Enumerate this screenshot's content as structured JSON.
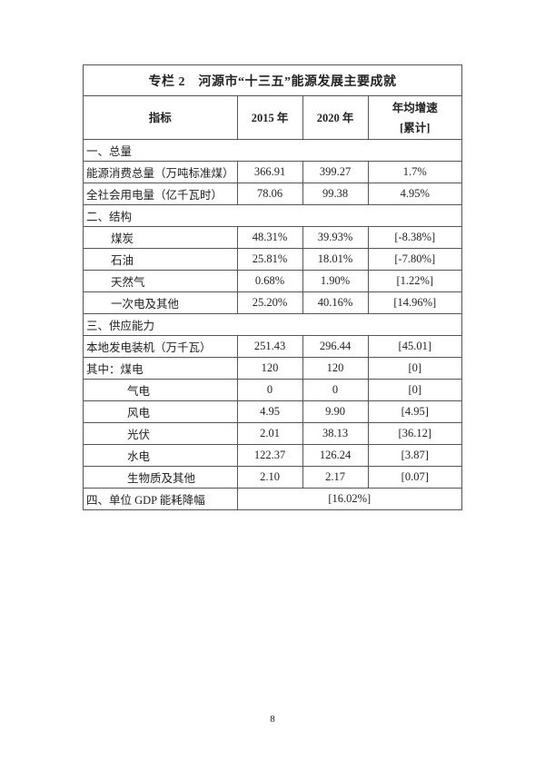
{
  "table": {
    "title": "专栏 2　河源市“十三五”能源发展主要成就",
    "headers": [
      "指标",
      "2015 年",
      "2020 年",
      "年均增速",
      "[累计]"
    ],
    "rows": [
      {
        "type": "section",
        "label": "一、总量"
      },
      {
        "type": "row",
        "indent": 0,
        "label": "能源消费总量（万吨标准煤）",
        "v2015": "366.91",
        "v2020": "399.27",
        "growth": "1.7%"
      },
      {
        "type": "row",
        "indent": 0,
        "label": "全社会用电量（亿千瓦时）",
        "v2015": "78.06",
        "v2020": "99.38",
        "growth": "4.95%"
      },
      {
        "type": "section",
        "label": "二、结构"
      },
      {
        "type": "row",
        "indent": 1,
        "label": "煤炭",
        "v2015": "48.31%",
        "v2020": "39.93%",
        "growth": "[-8.38%]"
      },
      {
        "type": "row",
        "indent": 1,
        "label": "石油",
        "v2015": "25.81%",
        "v2020": "18.01%",
        "growth": "[-7.80%]"
      },
      {
        "type": "row",
        "indent": 1,
        "label": "天然气",
        "v2015": "0.68%",
        "v2020": "1.90%",
        "growth": "[1.22%]"
      },
      {
        "type": "row",
        "indent": 1,
        "label": "一次电及其他",
        "v2015": "25.20%",
        "v2020": "40.16%",
        "growth": "[14.96%]"
      },
      {
        "type": "section",
        "label": "三、供应能力"
      },
      {
        "type": "row",
        "indent": 0,
        "label": "本地发电装机（万千瓦）",
        "v2015": "251.43",
        "v2020": "296.44",
        "growth": "[45.01]"
      },
      {
        "type": "row",
        "indent": 0,
        "label": "其中：煤电",
        "v2015": "120",
        "v2020": "120",
        "growth": "[0]"
      },
      {
        "type": "row",
        "indent": 2,
        "label": "气电",
        "v2015": "0",
        "v2020": "0",
        "growth": "[0]"
      },
      {
        "type": "row",
        "indent": 2,
        "label": "风电",
        "v2015": "4.95",
        "v2020": "9.90",
        "growth": "[4.95]"
      },
      {
        "type": "row",
        "indent": 2,
        "label": "光伏",
        "v2015": "2.01",
        "v2020": "38.13",
        "growth": "[36.12]"
      },
      {
        "type": "row",
        "indent": 2,
        "label": "水电",
        "v2015": "122.37",
        "v2020": "126.24",
        "growth": "[3.87]"
      },
      {
        "type": "row",
        "indent": 2,
        "label": "生物质及其他",
        "v2015": "2.10",
        "v2020": "2.17",
        "growth": "[0.07]"
      },
      {
        "type": "merged",
        "label": "四、单位 GDP 能耗降幅",
        "value": "[16.02%]"
      }
    ]
  },
  "page_number": "8"
}
